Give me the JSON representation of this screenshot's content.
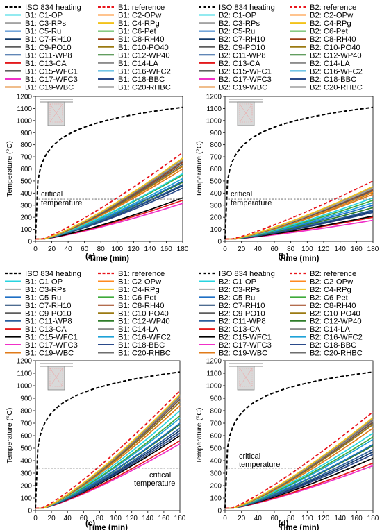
{
  "colors": {
    "iso": "#000000",
    "reference": "#e8141b",
    "C1": "#29d4e0",
    "C2": "#ff8a1f",
    "C3": "#a3a3a3",
    "C4": "#f2c21a",
    "C5": "#1f6fc4",
    "C6": "#3faa3a",
    "C7": "#123a6b",
    "C8": "#9a3b12",
    "C9": "#5d5d5d",
    "C10": "#9b7a12",
    "C11": "#2b5f9e",
    "C12": "#2f7d2a",
    "C13": "#e31a1c",
    "C14": "#8d8d8d",
    "C15": "#000000",
    "C16": "#1fa2d8",
    "C17": "#f030c8",
    "C18": "#2a4a8a",
    "C19": "#e07b1a",
    "C20": "#6e6e6e",
    "critical_line": "#7f7f7f"
  },
  "chart_data": [
    {
      "panel_label": "(a)",
      "type": "line",
      "legend_names": [
        "ISO 834 heating",
        "B1: reference",
        "B1: C1-OP",
        "B1: C2-OPw",
        "B1: C3-RPs",
        "B1: C4-RPg",
        "B1: C5-Ru",
        "B1: C6-Pet",
        "B1: C7-RH10",
        "B1: C8-RH40",
        "B1: C9-PO10",
        "B1: C10-PO40",
        "B1: C11-WP8",
        "B1: C12-WP40",
        "B1: C13-CA",
        "B1: C14-LA",
        "B1: C15-WFC1",
        "B1: C16-WFC2",
        "B1: C17-WFC3",
        "B1: C18-BBC",
        "B1: C19-WBC",
        "B1: C20-RHBC"
      ],
      "xlabel": "Time (min)",
      "ylabel": "Temperature (°C)",
      "xlim": [
        0,
        180
      ],
      "ylim": [
        0,
        1200
      ],
      "xticks": [
        "0",
        "20",
        "40",
        "60",
        "80",
        "100",
        "120",
        "140",
        "160",
        "180"
      ],
      "yticks": [
        "0",
        "100",
        "200",
        "300",
        "400",
        "500",
        "600",
        "700",
        "800",
        "900",
        "1000",
        "1100",
        "1200"
      ],
      "critical_label": [
        "critical",
        "temperature"
      ],
      "critical_temperature": 350,
      "series": [
        {
          "name": "B1: reference",
          "key": "reference",
          "dashed": true,
          "end": 735
        },
        {
          "key": "C1",
          "end": 560
        },
        {
          "key": "C2",
          "end": 620
        },
        {
          "key": "C3",
          "end": 655
        },
        {
          "key": "C4",
          "end": 690
        },
        {
          "key": "C5",
          "end": 500
        },
        {
          "key": "C6",
          "end": 550
        },
        {
          "key": "C7",
          "end": 460
        },
        {
          "key": "C8",
          "end": 655
        },
        {
          "key": "C9",
          "end": 640
        },
        {
          "key": "C10",
          "end": 625
        },
        {
          "key": "C11",
          "end": 470
        },
        {
          "key": "C12",
          "end": 490
        },
        {
          "key": "C13",
          "end": 340
        },
        {
          "key": "C14",
          "end": 680
        },
        {
          "key": "C15",
          "end": 360
        },
        {
          "key": "C16",
          "end": 520
        },
        {
          "key": "C17",
          "end": 315
        },
        {
          "key": "C18",
          "end": 440
        },
        {
          "key": "C19",
          "end": 600
        },
        {
          "key": "C20",
          "end": 665
        }
      ]
    },
    {
      "panel_label": "(b)",
      "type": "line",
      "legend_names": [
        "ISO 834 heating",
        "B2: reference",
        "B2: C1-OP",
        "B2: C2-OPw",
        "B2: C3-RPs",
        "B2: C4-RPg",
        "B2: C5-Ru",
        "B2: C6-Pet",
        "B2: C7-RH10",
        "B2: C8-RH40",
        "B2: C9-PO10",
        "B2: C10-PO40",
        "B2: C11-WP8",
        "B2: C12-WP40",
        "B2: C13-CA",
        "B2: C14-LA",
        "B2: C15-WFC1",
        "B2: C16-WFC2",
        "B2: C17-WFC3",
        "B2: C18-BBC",
        "B2: C19-WBC",
        "B2: C20-RHBC"
      ],
      "xlabel": "Time (min)",
      "ylabel": "Temperature (°C)",
      "xlim": [
        0,
        180
      ],
      "ylim": [
        0,
        1200
      ],
      "xticks": [
        "0",
        "20",
        "40",
        "60",
        "80",
        "100",
        "120",
        "140",
        "160",
        "180"
      ],
      "yticks": [
        "0",
        "100",
        "200",
        "300",
        "400",
        "500",
        "600",
        "700",
        "800",
        "900",
        "1000",
        "1100",
        "1200"
      ],
      "critical_label": [
        "critical",
        "temperature"
      ],
      "critical_temperature": 350,
      "series": [
        {
          "name": "B2: reference",
          "key": "reference",
          "dashed": true,
          "end": 500
        },
        {
          "key": "C1",
          "end": 360
        },
        {
          "key": "C2",
          "end": 410
        },
        {
          "key": "C3",
          "end": 440
        },
        {
          "key": "C4",
          "end": 455
        },
        {
          "key": "C5",
          "end": 300
        },
        {
          "key": "C6",
          "end": 340
        },
        {
          "key": "C7",
          "end": 250
        },
        {
          "key": "C8",
          "end": 430
        },
        {
          "key": "C9",
          "end": 420
        },
        {
          "key": "C10",
          "end": 405
        },
        {
          "key": "C11",
          "end": 260
        },
        {
          "key": "C12",
          "end": 280
        },
        {
          "key": "C13",
          "end": 200
        },
        {
          "key": "C14",
          "end": 450
        },
        {
          "key": "C15",
          "end": 210
        },
        {
          "key": "C16",
          "end": 320
        },
        {
          "key": "C17",
          "end": 175
        },
        {
          "key": "C18",
          "end": 240
        },
        {
          "key": "C19",
          "end": 390
        },
        {
          "key": "C20",
          "end": 435
        }
      ]
    },
    {
      "panel_label": "(c)",
      "type": "line",
      "legend_names": [
        "ISO 834 heating",
        "B1: reference",
        "B1: C1-OP",
        "B1: C2-OPw",
        "B1: C3-RPs",
        "B1: C4-RPg",
        "B1: C5-Ru",
        "B1: C6-Pet",
        "B1: C7-RH10",
        "B1: C8-RH40",
        "B1: C9-PO10",
        "B1: C10-PO40",
        "B1: C11-WP8",
        "B1: C12-WP40",
        "B1: C13-CA",
        "B1: C14-LA",
        "B1: C15-WFC1",
        "B1: C16-WFC2",
        "B1: C17-WFC3",
        "B1: C18-BBC",
        "B1: C19-WBC",
        "B1: C20-RHBC"
      ],
      "xlabel": "Time (min)",
      "ylabel": "Temperature (°C)",
      "xlim": [
        0,
        180
      ],
      "ylim": [
        0,
        1200
      ],
      "xticks": [
        "0",
        "20",
        "40",
        "60",
        "80",
        "100",
        "120",
        "140",
        "160",
        "180"
      ],
      "yticks": [
        "0",
        "100",
        "200",
        "300",
        "400",
        "500",
        "600",
        "700",
        "800",
        "900",
        "1000",
        "1100",
        "1200"
      ],
      "critical_label": [
        "critical",
        "temperature"
      ],
      "critical_temperature": 340,
      "series": [
        {
          "name": "B1: reference",
          "key": "reference",
          "dashed": true,
          "end": 960
        },
        {
          "key": "C1",
          "end": 800
        },
        {
          "key": "C2",
          "end": 870
        },
        {
          "key": "C3",
          "end": 905
        },
        {
          "key": "C4",
          "end": 930
        },
        {
          "key": "C5",
          "end": 700
        },
        {
          "key": "C6",
          "end": 760
        },
        {
          "key": "C7",
          "end": 640
        },
        {
          "key": "C8",
          "end": 900
        },
        {
          "key": "C9",
          "end": 890
        },
        {
          "key": "C10",
          "end": 870
        },
        {
          "key": "C11",
          "end": 660
        },
        {
          "key": "C12",
          "end": 690
        },
        {
          "key": "C13",
          "end": 560
        },
        {
          "key": "C14",
          "end": 920
        },
        {
          "key": "C15",
          "end": 600
        },
        {
          "key": "C16",
          "end": 740
        },
        {
          "key": "C17",
          "end": 535
        },
        {
          "key": "C18",
          "end": 620
        },
        {
          "key": "C19",
          "end": 840
        },
        {
          "key": "C20",
          "end": 910
        }
      ]
    },
    {
      "panel_label": "(d)",
      "type": "line",
      "legend_names": [
        "ISO 834 heating",
        "B2: reference",
        "B2: C1-OP",
        "B2: C2-OPw",
        "B2: C3-RPs",
        "B2: C4-RPg",
        "B2: C5-Ru",
        "B2: C6-Pet",
        "B2: C7-RH10",
        "B2: C8-RH40",
        "B2: C9-PO10",
        "B2: C10-PO40",
        "B2: C11-WP8",
        "B2: C12-WP40",
        "B2: C13-CA",
        "B2: C14-LA",
        "B2: C15-WFC1",
        "B2: C16-WFC2",
        "B2: C17-WFC3",
        "B2: C18-BBC",
        "B2: C19-WBC",
        "B2: C20-RHBC"
      ],
      "xlabel": "Time (min)",
      "ylabel": "Temperature (°C)",
      "xlim": [
        0,
        180
      ],
      "ylim": [
        0,
        1200
      ],
      "xticks": [
        "0",
        "20",
        "40",
        "60",
        "80",
        "100",
        "120",
        "140",
        "160",
        "180"
      ],
      "yticks": [
        "0",
        "100",
        "200",
        "300",
        "400",
        "500",
        "600",
        "700",
        "800",
        "900",
        "1000",
        "1100",
        "1200"
      ],
      "critical_label": [
        "critical",
        "temperature"
      ],
      "critical_temperature": 340,
      "series": [
        {
          "name": "B2: reference",
          "key": "reference",
          "dashed": true,
          "end": 790
        },
        {
          "key": "C1",
          "end": 620
        },
        {
          "key": "C2",
          "end": 690
        },
        {
          "key": "C3",
          "end": 720
        },
        {
          "key": "C4",
          "end": 745
        },
        {
          "key": "C5",
          "end": 530
        },
        {
          "key": "C6",
          "end": 590
        },
        {
          "key": "C7",
          "end": 470
        },
        {
          "key": "C8",
          "end": 715
        },
        {
          "key": "C9",
          "end": 705
        },
        {
          "key": "C10",
          "end": 690
        },
        {
          "key": "C11",
          "end": 490
        },
        {
          "key": "C12",
          "end": 520
        },
        {
          "key": "C13",
          "end": 380
        },
        {
          "key": "C14",
          "end": 735
        },
        {
          "key": "C15",
          "end": 420
        },
        {
          "key": "C16",
          "end": 570
        },
        {
          "key": "C17",
          "end": 360
        },
        {
          "key": "C18",
          "end": 450
        },
        {
          "key": "C19",
          "end": 660
        },
        {
          "key": "C20",
          "end": 725
        }
      ]
    }
  ]
}
